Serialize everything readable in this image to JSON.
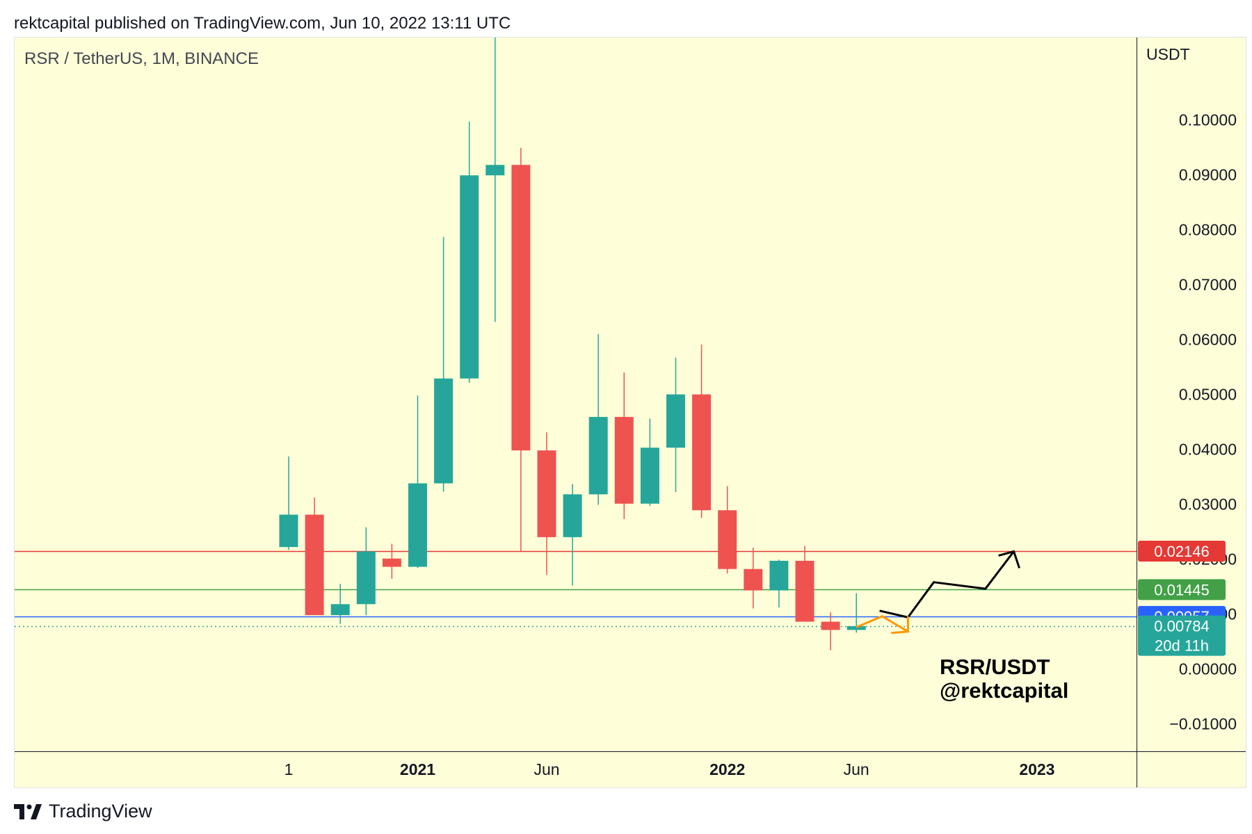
{
  "header": {
    "published": "rektcapital published on TradingView.com, Jun 10, 2022 13:11 UTC"
  },
  "footer": {
    "brand": "TradingView"
  },
  "colors": {
    "background": "#feffd8",
    "up": "#26a69a",
    "down": "#ef5350",
    "resistance": "#e53935",
    "mid_support": "#43a047",
    "support": "#2962ff",
    "current_price": "#26a69a",
    "projection_bullish": "#000000",
    "projection_bearish": "#ff9800"
  },
  "chart_data": {
    "type": "candlestick",
    "symbol_label": "RSR / TetherUS, 1M, BINANCE",
    "axis_unit": "USDT",
    "ylim": [
      -0.015,
      0.115
    ],
    "y_ticks": [
      "0.10000",
      "0.09000",
      "0.08000",
      "0.07000",
      "0.06000",
      "0.05000",
      "0.04000",
      "0.03000",
      "0.02000",
      "0.01000",
      "0.00000",
      "−0.01000"
    ],
    "x_tick_labels": [
      {
        "label": "1",
        "bold": false,
        "month_index": 0
      },
      {
        "label": "2021",
        "bold": true,
        "month_index": 5
      },
      {
        "label": "Jun",
        "bold": false,
        "month_index": 10
      },
      {
        "label": "2022",
        "bold": true,
        "month_index": 17
      },
      {
        "label": "Jun",
        "bold": false,
        "month_index": 22
      },
      {
        "label": "2023",
        "bold": true,
        "month_index": 29
      }
    ],
    "candles": [
      {
        "month": "2020-08",
        "open": 0.0222,
        "high": 0.0387,
        "low": 0.0217,
        "close": 0.0281
      },
      {
        "month": "2020-09",
        "open": 0.0281,
        "high": 0.0312,
        "low": 0.0098,
        "close": 0.0098
      },
      {
        "month": "2020-10",
        "open": 0.0098,
        "high": 0.0155,
        "low": 0.0082,
        "close": 0.0118
      },
      {
        "month": "2020-11",
        "open": 0.0118,
        "high": 0.0258,
        "low": 0.0098,
        "close": 0.0214
      },
      {
        "month": "2020-12",
        "open": 0.0201,
        "high": 0.0228,
        "low": 0.0164,
        "close": 0.0186
      },
      {
        "month": "2021-01",
        "open": 0.0186,
        "high": 0.0498,
        "low": 0.0184,
        "close": 0.0338
      },
      {
        "month": "2021-02",
        "open": 0.0338,
        "high": 0.0787,
        "low": 0.0323,
        "close": 0.0529
      },
      {
        "month": "2021-03",
        "open": 0.0529,
        "high": 0.0997,
        "low": 0.0521,
        "close": 0.0899
      },
      {
        "month": "2021-04",
        "open": 0.0899,
        "high": 0.116,
        "low": 0.0632,
        "close": 0.0918
      },
      {
        "month": "2021-05",
        "open": 0.0918,
        "high": 0.0949,
        "low": 0.0214,
        "close": 0.0398
      },
      {
        "month": "2021-06",
        "open": 0.0398,
        "high": 0.0431,
        "low": 0.0171,
        "close": 0.024
      },
      {
        "month": "2021-07",
        "open": 0.024,
        "high": 0.0337,
        "low": 0.0152,
        "close": 0.0318
      },
      {
        "month": "2021-08",
        "open": 0.0318,
        "high": 0.061,
        "low": 0.0299,
        "close": 0.0459
      },
      {
        "month": "2021-09",
        "open": 0.0459,
        "high": 0.054,
        "low": 0.0273,
        "close": 0.0301
      },
      {
        "month": "2021-10",
        "open": 0.0301,
        "high": 0.0456,
        "low": 0.0297,
        "close": 0.0403
      },
      {
        "month": "2021-11",
        "open": 0.0403,
        "high": 0.0567,
        "low": 0.0322,
        "close": 0.05
      },
      {
        "month": "2021-12",
        "open": 0.05,
        "high": 0.0591,
        "low": 0.0275,
        "close": 0.0289
      },
      {
        "month": "2022-01",
        "open": 0.0289,
        "high": 0.0333,
        "low": 0.0174,
        "close": 0.0182
      },
      {
        "month": "2022-02",
        "open": 0.0182,
        "high": 0.0221,
        "low": 0.011,
        "close": 0.0143
      },
      {
        "month": "2022-03",
        "open": 0.0143,
        "high": 0.0199,
        "low": 0.0112,
        "close": 0.0197
      },
      {
        "month": "2022-04",
        "open": 0.0197,
        "high": 0.0224,
        "low": 0.0086,
        "close": 0.0086
      },
      {
        "month": "2022-05",
        "open": 0.0086,
        "high": 0.0103,
        "low": 0.0034,
        "close": 0.0071
      },
      {
        "month": "2022-06",
        "open": 0.0071,
        "high": 0.0138,
        "low": 0.0066,
        "close": 0.0078
      }
    ],
    "horizontal_levels": [
      {
        "name": "resistance",
        "value": 0.02146,
        "label": "0.02146",
        "color": "#e53935",
        "style": "solid"
      },
      {
        "name": "mid-support",
        "value": 0.01445,
        "label": "0.01445",
        "color": "#43a047",
        "style": "solid"
      },
      {
        "name": "support",
        "value": 0.00957,
        "label": "0.00957",
        "color": "#2962ff",
        "style": "solid"
      },
      {
        "name": "current-price",
        "value": 0.00784,
        "label": "0.00784",
        "color": "#26a69a",
        "style": "dotted"
      }
    ],
    "countdown": "20d 11h",
    "projections": {
      "bullish": [
        [
          22.9,
          0.0106
        ],
        [
          24.0,
          0.0094
        ],
        [
          25.0,
          0.0158
        ],
        [
          27.0,
          0.0146
        ],
        [
          28.1,
          0.0214
        ]
      ],
      "bearish": [
        [
          22.0,
          0.0076
        ],
        [
          23.0,
          0.0096
        ],
        [
          24.0,
          0.0068
        ]
      ]
    },
    "annotation": [
      "RSR/USDT",
      "@rektcapital"
    ]
  }
}
